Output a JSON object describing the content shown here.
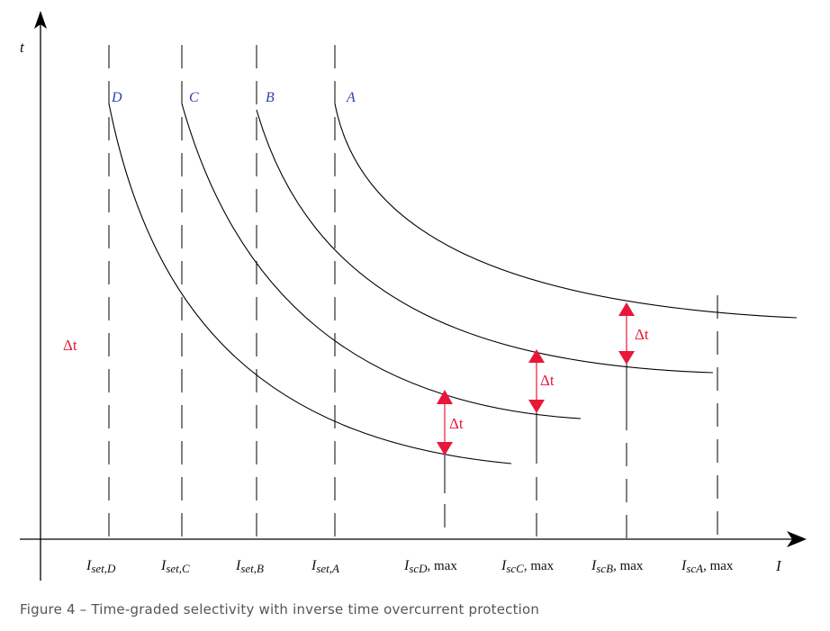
{
  "axes": {
    "y_label": "t",
    "x_label": "I"
  },
  "curves": [
    {
      "label": "D",
      "color": "#2b3fb0"
    },
    {
      "label": "C",
      "color": "#2b3fb0"
    },
    {
      "label": "B",
      "color": "#2b3fb0"
    },
    {
      "label": "A",
      "color": "#2b3fb0"
    }
  ],
  "set_ticks": [
    {
      "main": "I",
      "sub": "set",
      "suffix": "D"
    },
    {
      "main": "I",
      "sub": "set",
      "suffix": "C"
    },
    {
      "main": "I",
      "sub": "set",
      "suffix": "B"
    },
    {
      "main": "I",
      "sub": "set",
      "suffix": "A"
    }
  ],
  "sc_ticks": [
    {
      "main": "I",
      "sub": "scD",
      "suffix": "max"
    },
    {
      "main": "I",
      "sub": "scC",
      "suffix": "max"
    },
    {
      "main": "I",
      "sub": "scB",
      "suffix": "max"
    },
    {
      "main": "I",
      "sub": "scA",
      "suffix": "max"
    }
  ],
  "delta": {
    "label": "Δt",
    "color": "#e8173a"
  },
  "caption": "Figure 4 – Time-graded selectivity with inverse time overcurrent protection"
}
